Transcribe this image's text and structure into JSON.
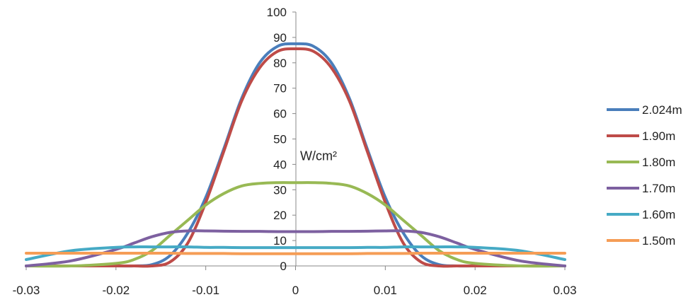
{
  "chart_data": {
    "type": "line",
    "title": "",
    "xlabel": "",
    "ylabel": "W/cm²",
    "xlim": [
      -0.03,
      0.03
    ],
    "ylim": [
      0,
      100
    ],
    "x_ticks": [
      "-0.03",
      "-0.02",
      "-0.01",
      "0",
      "0.01",
      "0.02",
      "0.03"
    ],
    "y_ticks": [
      "0",
      "10",
      "20",
      "30",
      "40",
      "50",
      "60",
      "70",
      "80",
      "90",
      "100"
    ],
    "grid": false,
    "legend_position": "right",
    "x": [
      -0.03,
      -0.025,
      -0.02,
      -0.018,
      -0.016,
      -0.014,
      -0.012,
      -0.01,
      -0.008,
      -0.006,
      -0.004,
      -0.002,
      0,
      0.002,
      0.004,
      0.006,
      0.008,
      0.01,
      0.012,
      0.014,
      0.016,
      0.018,
      0.02,
      0.025,
      0.03
    ],
    "series": [
      {
        "name": "2.024m",
        "color": "#4a7ebb",
        "values": [
          0,
          0,
          0,
          0,
          0.5,
          4,
          13,
          27,
          46,
          66,
          80,
          86.5,
          87.5,
          86.5,
          80,
          66,
          46,
          27,
          13,
          4,
          0.5,
          0,
          0,
          0,
          0
        ]
      },
      {
        "name": "1.90m",
        "color": "#be4b48",
        "values": [
          0,
          0,
          0,
          0,
          0,
          1.5,
          9,
          25,
          45,
          65,
          78,
          84.5,
          85.5,
          84.5,
          78,
          65,
          45,
          25,
          9,
          1.5,
          0,
          0,
          0,
          0,
          0
        ]
      },
      {
        "name": "1.80m",
        "color": "#98b954",
        "values": [
          0,
          0,
          1,
          2.5,
          6,
          12,
          18,
          24,
          28.5,
          31.5,
          32.5,
          32.8,
          32.8,
          32.8,
          32.5,
          31.5,
          28.5,
          24,
          18,
          12,
          6,
          2.5,
          1,
          0,
          0
        ]
      },
      {
        "name": "1.70m",
        "color": "#7d60a0",
        "values": [
          0,
          2,
          6.5,
          9,
          11.5,
          13.2,
          13.8,
          13.8,
          13.7,
          13.6,
          13.6,
          13.5,
          13.5,
          13.5,
          13.6,
          13.6,
          13.7,
          13.8,
          13.8,
          13.2,
          11.5,
          9,
          6.5,
          2,
          0
        ]
      },
      {
        "name": "1.60m",
        "color": "#46aac5",
        "values": [
          2.5,
          6,
          7.3,
          7.5,
          7.5,
          7.5,
          7.5,
          7.3,
          7.3,
          7.2,
          7.2,
          7.2,
          7.2,
          7.2,
          7.2,
          7.2,
          7.3,
          7.3,
          7.5,
          7.5,
          7.5,
          7.5,
          7.3,
          6,
          2.5
        ]
      },
      {
        "name": "1.50m",
        "color": "#f59d56",
        "values": [
          5,
          5,
          5,
          5,
          5,
          5,
          4.9,
          4.9,
          4.9,
          4.8,
          4.8,
          4.8,
          4.8,
          4.8,
          4.8,
          4.8,
          4.9,
          4.9,
          4.9,
          5,
          5,
          5,
          5,
          5,
          5
        ]
      }
    ]
  }
}
